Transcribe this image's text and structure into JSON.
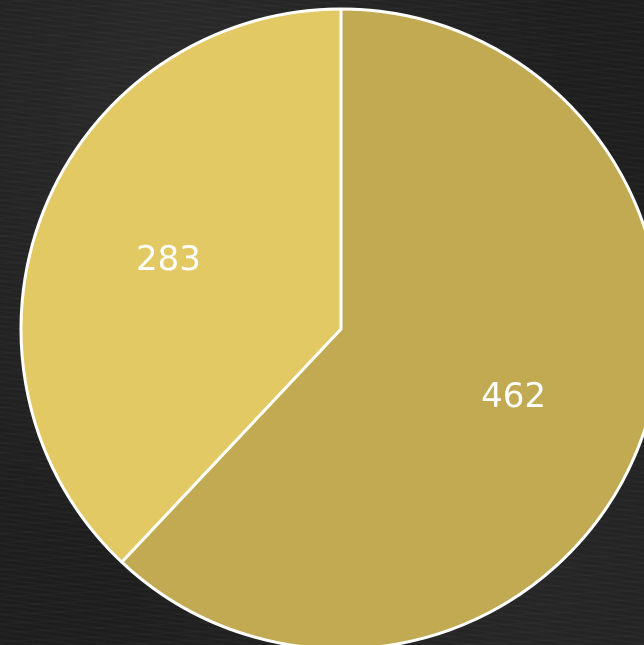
{
  "chart_data": {
    "type": "pie",
    "categories": [
      "",
      ""
    ],
    "values": [
      462,
      283
    ],
    "data_labels": [
      "462",
      "283"
    ],
    "colors": [
      "#c2aa52",
      "#e2c963"
    ],
    "start_angle_deg": 0,
    "direction": "clockwise",
    "title": "",
    "legend": "none"
  }
}
